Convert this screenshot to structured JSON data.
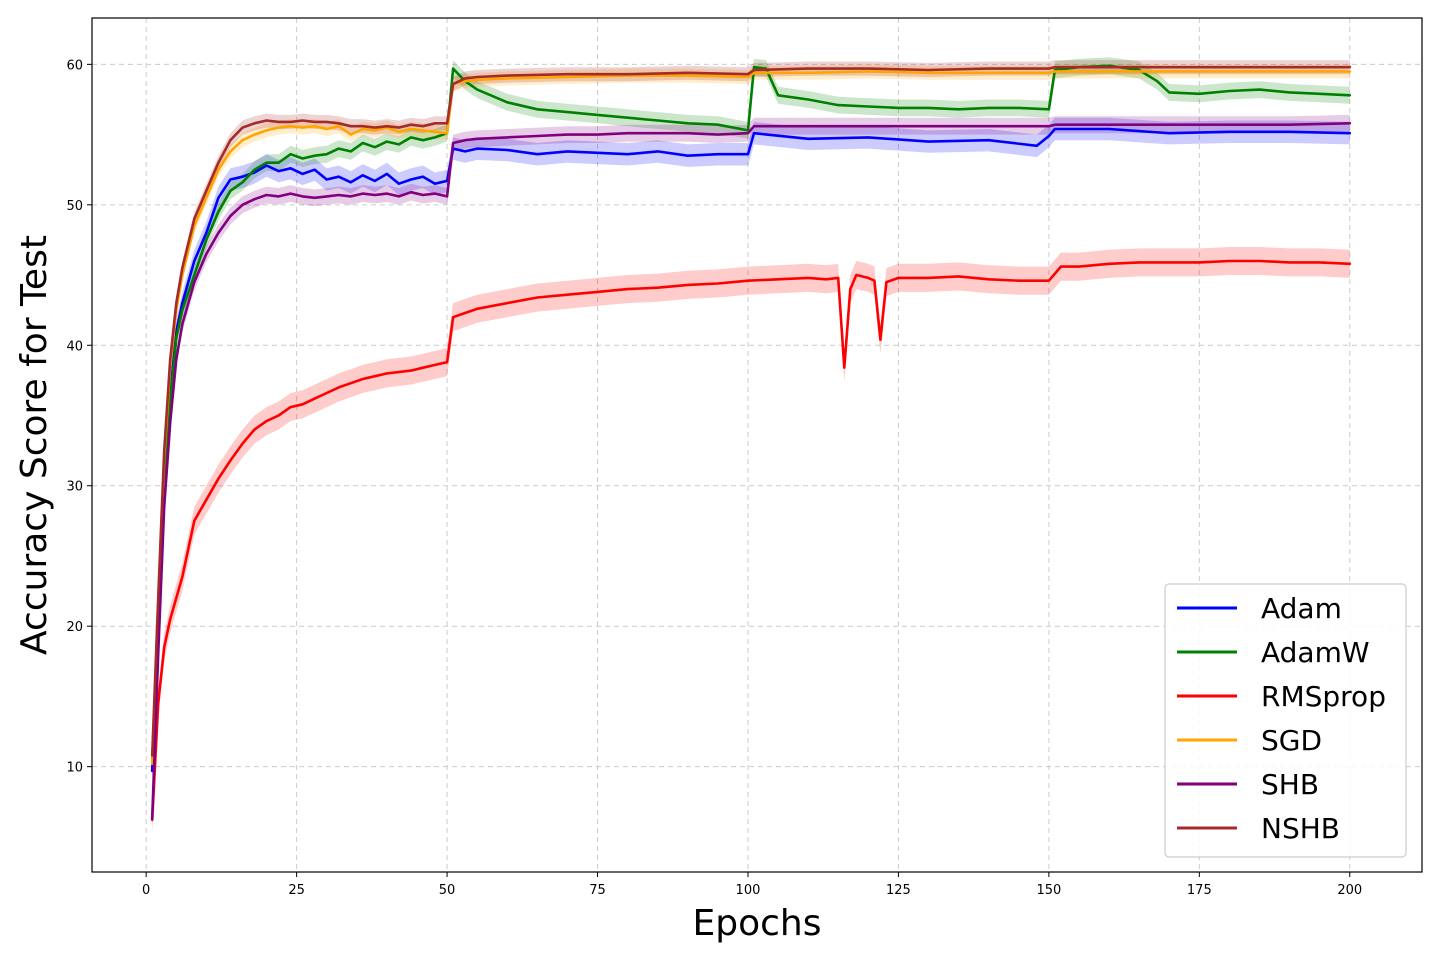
{
  "chart_data": {
    "type": "line",
    "title": "",
    "xlabel": "Epochs",
    "ylabel": "Accuracy Score for Test",
    "xlim": [
      -9,
      212
    ],
    "ylim": [
      2.5,
      63.3
    ],
    "xticks": [
      0,
      25,
      50,
      75,
      100,
      125,
      150,
      175,
      200
    ],
    "yticks": [
      10,
      20,
      30,
      40,
      50,
      60
    ],
    "grid": true,
    "legend_position": "lower-right",
    "shaded_band": "min-max spread around mean",
    "series": [
      {
        "name": "Adam",
        "color": "#0000ff",
        "band": 0.8,
        "x": [
          1,
          2,
          3,
          4,
          5,
          6,
          8,
          10,
          12,
          14,
          16,
          18,
          20,
          22,
          24,
          26,
          28,
          30,
          32,
          34,
          36,
          38,
          40,
          42,
          44,
          46,
          48,
          50,
          51,
          53,
          55,
          60,
          65,
          70,
          75,
          80,
          85,
          90,
          95,
          100,
          101,
          110,
          120,
          130,
          140,
          148,
          150,
          151,
          160,
          170,
          180,
          190,
          200
        ],
        "y": [
          9.7,
          20.5,
          30.5,
          36.5,
          41.0,
          43.0,
          46.0,
          48.0,
          50.5,
          51.8,
          52.0,
          52.3,
          52.8,
          52.4,
          52.6,
          52.2,
          52.5,
          51.8,
          52.0,
          51.6,
          52.1,
          51.7,
          52.2,
          51.5,
          51.8,
          52.0,
          51.5,
          51.7,
          54.0,
          53.8,
          54.0,
          53.9,
          53.6,
          53.8,
          53.7,
          53.6,
          53.8,
          53.5,
          53.6,
          53.6,
          55.1,
          54.7,
          54.8,
          54.5,
          54.6,
          54.2,
          54.9,
          55.4,
          55.4,
          55.1,
          55.2,
          55.2,
          55.1
        ]
      },
      {
        "name": "AdamW",
        "color": "#008000",
        "band": 0.6,
        "x": [
          1,
          2,
          3,
          4,
          5,
          6,
          8,
          10,
          12,
          14,
          16,
          18,
          20,
          22,
          24,
          26,
          28,
          30,
          32,
          34,
          36,
          38,
          40,
          42,
          44,
          46,
          48,
          50,
          51,
          53,
          55,
          60,
          65,
          70,
          75,
          80,
          85,
          90,
          95,
          100,
          101,
          103,
          105,
          110,
          115,
          120,
          125,
          130,
          135,
          140,
          145,
          150,
          151,
          155,
          160,
          165,
          168,
          170,
          175,
          180,
          185,
          190,
          195,
          200
        ],
        "y": [
          10.5,
          20.0,
          30.0,
          36.0,
          40.5,
          42.5,
          45.0,
          47.5,
          49.5,
          51.0,
          51.6,
          52.5,
          53.0,
          53.0,
          53.6,
          53.3,
          53.5,
          53.6,
          54.0,
          53.8,
          54.4,
          54.1,
          54.5,
          54.3,
          54.8,
          54.6,
          54.8,
          55.1,
          59.7,
          58.8,
          58.2,
          57.3,
          56.8,
          56.6,
          56.4,
          56.2,
          56.0,
          55.8,
          55.7,
          55.3,
          59.8,
          59.7,
          57.8,
          57.5,
          57.1,
          57.0,
          56.9,
          56.9,
          56.8,
          56.9,
          56.9,
          56.8,
          59.6,
          59.8,
          59.9,
          59.6,
          58.8,
          58.0,
          57.9,
          58.1,
          58.2,
          58.0,
          57.9,
          57.8
        ]
      },
      {
        "name": "RMSprop",
        "color": "#ff0000",
        "band": 1.0,
        "x": [
          1,
          2,
          3,
          4,
          6,
          8,
          10,
          12,
          14,
          16,
          18,
          20,
          22,
          24,
          26,
          28,
          30,
          32,
          34,
          36,
          38,
          40,
          42,
          44,
          46,
          48,
          50,
          51,
          53,
          55,
          60,
          65,
          70,
          75,
          80,
          85,
          90,
          95,
          100,
          105,
          110,
          113,
          115,
          116,
          117,
          118,
          120,
          121,
          122,
          123,
          125,
          130,
          135,
          140,
          145,
          150,
          152,
          155,
          160,
          165,
          170,
          175,
          180,
          185,
          190,
          195,
          200
        ],
        "y": [
          6.2,
          14.5,
          18.5,
          20.5,
          23.5,
          27.5,
          29.0,
          30.5,
          31.8,
          33.0,
          34.0,
          34.6,
          35.0,
          35.6,
          35.8,
          36.2,
          36.6,
          37.0,
          37.3,
          37.6,
          37.8,
          38.0,
          38.1,
          38.2,
          38.4,
          38.6,
          38.8,
          42.0,
          42.3,
          42.6,
          43.0,
          43.4,
          43.6,
          43.8,
          44.0,
          44.1,
          44.3,
          44.4,
          44.6,
          44.7,
          44.8,
          44.7,
          44.8,
          38.4,
          44.0,
          45.0,
          44.8,
          44.6,
          40.4,
          44.5,
          44.8,
          44.8,
          44.9,
          44.7,
          44.6,
          44.6,
          45.6,
          45.6,
          45.8,
          45.9,
          45.9,
          45.9,
          46.0,
          46.0,
          45.9,
          45.9,
          45.8
        ]
      },
      {
        "name": "SGD",
        "color": "#ffa500",
        "band": 0.5,
        "x": [
          1,
          2,
          3,
          4,
          5,
          6,
          8,
          10,
          12,
          14,
          16,
          18,
          20,
          22,
          24,
          26,
          28,
          30,
          32,
          34,
          36,
          38,
          40,
          42,
          44,
          46,
          48,
          50,
          51,
          53,
          55,
          60,
          70,
          80,
          90,
          100,
          101,
          110,
          120,
          130,
          140,
          150,
          151,
          160,
          170,
          180,
          190,
          200
        ],
        "y": [
          10.2,
          21.5,
          32.0,
          38.5,
          42.5,
          45.0,
          48.5,
          50.5,
          52.5,
          53.8,
          54.6,
          55.0,
          55.3,
          55.5,
          55.6,
          55.5,
          55.6,
          55.4,
          55.6,
          55.0,
          55.4,
          55.3,
          55.5,
          55.2,
          55.4,
          55.3,
          55.2,
          55.1,
          58.6,
          58.8,
          58.9,
          59.0,
          59.1,
          59.2,
          59.2,
          59.1,
          59.4,
          59.4,
          59.5,
          59.4,
          59.4,
          59.4,
          59.5,
          59.5,
          59.5,
          59.5,
          59.5,
          59.5
        ]
      },
      {
        "name": "SHB",
        "color": "#800080",
        "band": 0.6,
        "x": [
          1,
          2,
          3,
          4,
          5,
          6,
          8,
          10,
          12,
          14,
          16,
          18,
          20,
          22,
          24,
          26,
          28,
          30,
          32,
          34,
          36,
          38,
          40,
          42,
          44,
          46,
          48,
          50,
          51,
          53,
          55,
          60,
          65,
          70,
          75,
          80,
          85,
          90,
          95,
          100,
          101,
          110,
          120,
          130,
          140,
          150,
          151,
          160,
          170,
          180,
          190,
          200
        ],
        "y": [
          6.3,
          18.0,
          28.5,
          34.5,
          39.0,
          41.5,
          44.5,
          46.5,
          48.0,
          49.2,
          50.0,
          50.4,
          50.7,
          50.6,
          50.8,
          50.6,
          50.5,
          50.6,
          50.7,
          50.6,
          50.8,
          50.7,
          50.8,
          50.6,
          50.9,
          50.7,
          50.8,
          50.6,
          54.4,
          54.6,
          54.7,
          54.8,
          54.9,
          55.0,
          55.0,
          55.1,
          55.1,
          55.1,
          55.0,
          55.1,
          55.6,
          55.6,
          55.6,
          55.6,
          55.6,
          55.6,
          55.7,
          55.7,
          55.7,
          55.7,
          55.7,
          55.8
        ]
      },
      {
        "name": "NSHB",
        "color": "#a52a2a",
        "band": 0.5,
        "x": [
          1,
          2,
          3,
          4,
          5,
          6,
          8,
          10,
          12,
          14,
          16,
          18,
          20,
          22,
          24,
          26,
          28,
          30,
          32,
          34,
          36,
          38,
          40,
          42,
          44,
          46,
          48,
          50,
          51,
          53,
          55,
          60,
          70,
          80,
          90,
          100,
          101,
          110,
          120,
          130,
          140,
          150,
          151,
          160,
          170,
          180,
          190,
          200
        ],
        "y": [
          10.8,
          22.0,
          32.5,
          39.0,
          43.0,
          45.5,
          49.0,
          51.0,
          53.0,
          54.6,
          55.5,
          55.8,
          56.0,
          55.9,
          55.9,
          56.0,
          55.9,
          55.9,
          55.8,
          55.6,
          55.6,
          55.5,
          55.6,
          55.5,
          55.7,
          55.6,
          55.8,
          55.8,
          58.6,
          59.0,
          59.1,
          59.2,
          59.3,
          59.3,
          59.4,
          59.3,
          59.6,
          59.7,
          59.7,
          59.6,
          59.7,
          59.7,
          59.8,
          59.8,
          59.8,
          59.8,
          59.8,
          59.8
        ]
      }
    ]
  }
}
